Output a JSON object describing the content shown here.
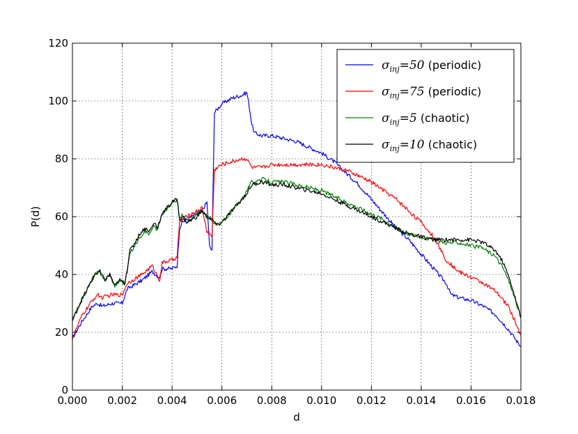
{
  "chart_data": {
    "type": "line",
    "title": "",
    "xlabel": "d",
    "ylabel": "P(d)",
    "xlim": [
      0,
      0.018
    ],
    "ylim": [
      0,
      120
    ],
    "xticks": [
      "0.000",
      "0.002",
      "0.004",
      "0.006",
      "0.008",
      "0.010",
      "0.012",
      "0.014",
      "0.016",
      "0.018"
    ],
    "yticks": [
      "0",
      "20",
      "40",
      "60",
      "80",
      "100",
      "120"
    ],
    "grid": true,
    "legend_position": "top-right",
    "series": [
      {
        "name": "σinj=50 (periodic)",
        "symbol": "σ",
        "subscript": "inj",
        "value_text": "=50",
        "suffix": " (periodic)",
        "color": "#0000ff",
        "x": [
          0,
          0.0004,
          0.0008,
          0.001,
          0.0012,
          0.0016,
          0.002,
          0.0022,
          0.0024,
          0.0028,
          0.0032,
          0.0035,
          0.0036,
          0.004,
          0.0042,
          0.0043,
          0.0044,
          0.0048,
          0.0052,
          0.0054,
          0.0055,
          0.0056,
          0.0057,
          0.0058,
          0.006,
          0.0064,
          0.0068,
          0.007,
          0.0071,
          0.0072,
          0.0073,
          0.0076,
          0.008,
          0.0085,
          0.009,
          0.0095,
          0.01,
          0.0105,
          0.011,
          0.0115,
          0.012,
          0.0125,
          0.013,
          0.0135,
          0.014,
          0.0145,
          0.015,
          0.0152,
          0.0155,
          0.016,
          0.0165,
          0.017,
          0.0175,
          0.018
        ],
        "y": [
          18,
          24,
          29,
          30,
          29,
          30,
          30,
          35,
          36,
          38,
          41,
          39,
          42,
          42,
          43,
          56,
          58,
          60,
          62,
          65,
          50,
          48,
          96,
          97,
          99,
          101,
          102,
          103,
          98,
          92,
          89,
          88,
          88,
          87,
          86,
          84,
          82,
          79,
          75,
          71,
          66,
          61,
          56,
          52,
          47,
          42,
          37,
          33,
          32,
          31,
          29,
          26,
          21,
          15
        ]
      },
      {
        "name": "σinj=75 (periodic)",
        "symbol": "σ",
        "subscript": "inj",
        "value_text": "=75",
        "suffix": " (periodic)",
        "color": "#ff0000",
        "x": [
          0,
          0.0004,
          0.0008,
          0.001,
          0.0012,
          0.0016,
          0.002,
          0.0022,
          0.0024,
          0.0028,
          0.0032,
          0.0035,
          0.0036,
          0.004,
          0.0042,
          0.0043,
          0.0044,
          0.0048,
          0.0052,
          0.0054,
          0.0056,
          0.0057,
          0.0058,
          0.006,
          0.0064,
          0.0068,
          0.007,
          0.0072,
          0.0076,
          0.008,
          0.0085,
          0.009,
          0.0095,
          0.01,
          0.0105,
          0.011,
          0.0115,
          0.012,
          0.0125,
          0.013,
          0.0135,
          0.014,
          0.0145,
          0.015,
          0.0155,
          0.016,
          0.0165,
          0.017,
          0.0175,
          0.018
        ],
        "y": [
          18,
          26,
          31,
          33,
          32,
          33,
          33,
          37,
          38,
          40,
          43,
          38,
          44,
          45,
          46,
          58,
          59,
          61,
          63,
          55,
          53,
          76,
          77,
          78,
          79,
          80,
          80,
          77,
          77,
          78,
          78,
          78,
          78,
          78,
          77,
          76,
          74,
          72,
          69,
          66,
          62,
          58,
          53,
          45,
          41,
          39,
          37,
          34,
          29,
          19
        ]
      },
      {
        "name": "σinj=5 (chaotic)",
        "symbol": "σ",
        "subscript": "inj",
        "value_text": "=5",
        "suffix": " (chaotic)",
        "color": "#008000",
        "x": [
          0,
          0.0003,
          0.0006,
          0.0009,
          0.0011,
          0.0013,
          0.0015,
          0.0017,
          0.0019,
          0.0021,
          0.0022,
          0.0023,
          0.0025,
          0.0027,
          0.0029,
          0.0031,
          0.0033,
          0.0034,
          0.0036,
          0.0038,
          0.004,
          0.0042,
          0.0043,
          0.0044,
          0.0046,
          0.0048,
          0.005,
          0.0052,
          0.0054,
          0.0056,
          0.0058,
          0.006,
          0.0062,
          0.0064,
          0.0066,
          0.0068,
          0.007,
          0.0072,
          0.0076,
          0.008,
          0.0085,
          0.009,
          0.0095,
          0.01,
          0.0105,
          0.011,
          0.0115,
          0.012,
          0.0125,
          0.013,
          0.0135,
          0.014,
          0.0145,
          0.015,
          0.0155,
          0.016,
          0.0165,
          0.017,
          0.0173,
          0.0176,
          0.018
        ],
        "y": [
          24,
          30,
          35,
          40,
          41,
          38,
          40,
          36,
          38,
          37,
          41,
          47,
          50,
          53,
          55,
          54,
          57,
          55,
          61,
          63,
          65,
          66,
          59,
          61,
          58,
          59,
          61,
          62,
          60,
          59,
          57,
          58,
          60,
          62,
          64,
          66,
          69,
          72,
          73,
          72,
          72,
          71,
          70,
          69,
          67,
          65,
          63,
          61,
          59,
          56,
          54,
          53,
          52,
          51,
          51,
          50,
          49,
          46,
          42,
          36,
          25
        ]
      },
      {
        "name": "σinj=10 (chaotic)",
        "symbol": "σ",
        "subscript": "inj",
        "value_text": "=10",
        "suffix": " (chaotic)",
        "color": "#000000",
        "x": [
          0,
          0.0003,
          0.0006,
          0.0009,
          0.0011,
          0.0013,
          0.0015,
          0.0017,
          0.0019,
          0.0021,
          0.0022,
          0.0023,
          0.0025,
          0.0027,
          0.0029,
          0.0031,
          0.0033,
          0.0034,
          0.0036,
          0.0038,
          0.004,
          0.0042,
          0.0043,
          0.0044,
          0.0046,
          0.0048,
          0.005,
          0.0052,
          0.0054,
          0.0056,
          0.0058,
          0.006,
          0.0062,
          0.0064,
          0.0066,
          0.0068,
          0.007,
          0.0072,
          0.0076,
          0.008,
          0.0085,
          0.009,
          0.0095,
          0.01,
          0.0105,
          0.011,
          0.0115,
          0.012,
          0.0125,
          0.013,
          0.0135,
          0.014,
          0.0145,
          0.015,
          0.0155,
          0.016,
          0.0165,
          0.017,
          0.0173,
          0.0176,
          0.018
        ],
        "y": [
          24,
          30,
          35,
          40,
          41,
          38,
          40,
          36,
          38,
          37,
          42,
          48,
          51,
          54,
          56,
          55,
          58,
          56,
          61,
          63,
          65,
          66,
          59,
          60,
          58,
          59,
          60,
          62,
          60,
          59,
          57,
          58,
          60,
          62,
          64,
          66,
          68,
          71,
          72,
          71,
          71,
          70,
          69,
          68,
          66,
          64,
          62,
          60,
          58,
          56,
          54,
          53,
          52,
          52,
          52,
          52,
          51,
          48,
          44,
          37,
          25
        ]
      }
    ]
  }
}
